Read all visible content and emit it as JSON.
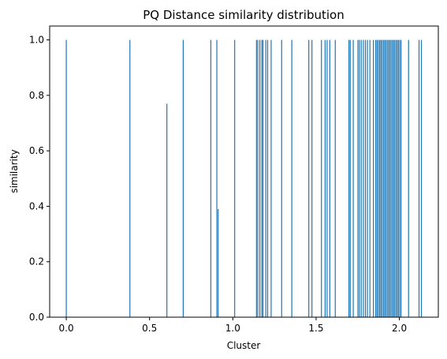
{
  "chart_data": {
    "type": "bar",
    "title": "PQ Distance similarity distribution",
    "xlabel": "Cluster",
    "ylabel": "similarity",
    "xlim": [
      -0.0998,
      2.2338
    ],
    "ylim": [
      0,
      1.05
    ],
    "xticks": [
      0.0,
      0.5,
      1.0,
      1.5,
      2.0
    ],
    "xtick_labels": [
      "0.0",
      "0.5",
      "1.0",
      "1.5",
      "2.0"
    ],
    "yticks": [
      0.0,
      0.2,
      0.4,
      0.6,
      0.8,
      1.0
    ],
    "ytick_labels": [
      "0.0",
      "0.2",
      "0.4",
      "0.6",
      "0.8",
      "1.0"
    ],
    "bar_color": "#1f77b4",
    "grid": false,
    "legend": "none",
    "x": [
      0.0,
      0.382,
      0.604,
      0.702,
      0.868,
      0.904,
      0.912,
      1.011,
      1.142,
      1.15,
      1.162,
      1.174,
      1.181,
      1.198,
      1.209,
      1.23,
      1.293,
      1.354,
      1.456,
      1.475,
      1.532,
      1.554,
      1.566,
      1.582,
      1.615,
      1.697,
      1.705,
      1.723,
      1.751,
      1.76,
      1.771,
      1.784,
      1.796,
      1.808,
      1.823,
      1.844,
      1.858,
      1.866,
      1.874,
      1.882,
      1.89,
      1.898,
      1.906,
      1.914,
      1.922,
      1.93,
      1.938,
      1.946,
      1.954,
      1.962,
      1.97,
      1.978,
      1.986,
      1.994,
      2.002,
      2.01,
      2.055,
      2.118,
      2.132
    ],
    "values": [
      1.0,
      1.0,
      0.77,
      1.0,
      1.0,
      1.0,
      0.39,
      1.0,
      1.0,
      1.0,
      1.0,
      1.0,
      1.0,
      1.0,
      1.0,
      1.0,
      1.0,
      1.0,
      1.0,
      1.0,
      1.0,
      1.0,
      1.0,
      1.0,
      1.0,
      1.0,
      1.0,
      1.0,
      1.0,
      1.0,
      1.0,
      1.0,
      1.0,
      1.0,
      1.0,
      1.0,
      1.0,
      1.0,
      1.0,
      1.0,
      1.0,
      1.0,
      1.0,
      1.0,
      1.0,
      1.0,
      1.0,
      1.0,
      1.0,
      1.0,
      1.0,
      1.0,
      1.0,
      1.0,
      1.0,
      1.0,
      1.0,
      1.0,
      1.0
    ],
    "bar_width": 0.0045
  }
}
